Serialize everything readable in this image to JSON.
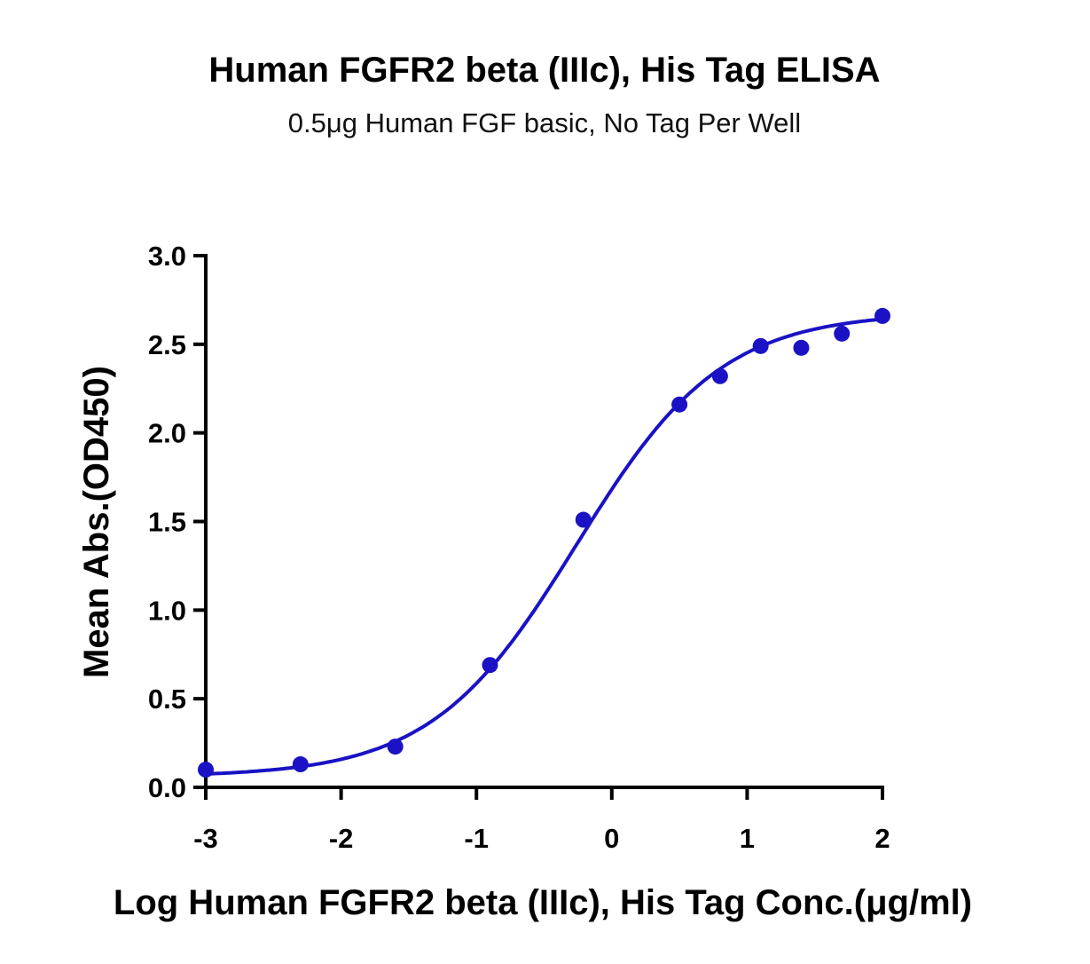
{
  "chart_data": {
    "type": "scatter",
    "title": "Human FGFR2 beta (IIIc), His Tag ELISA",
    "subtitle": "0.5μg Human FGF basic, No Tag Per Well",
    "xlabel": "Log Human FGFR2 beta (IIIc), His Tag Conc.(μg/ml)",
    "ylabel": "Mean Abs.(OD450)",
    "xlim": [
      -3,
      2
    ],
    "ylim": [
      0,
      3.0
    ],
    "xticks": [
      "-3",
      "-2",
      "-1",
      "0",
      "1",
      "2"
    ],
    "yticks": [
      "0.0",
      "0.5",
      "1.0",
      "1.5",
      "2.0",
      "2.5",
      "3.0"
    ],
    "grid": false,
    "color": "#1a12c4",
    "series": [
      {
        "name": "Mean Abs.",
        "x": [
          -3.0,
          -2.3,
          -1.6,
          -0.9,
          -0.21,
          0.5,
          0.8,
          1.1,
          1.4,
          1.7,
          2.0
        ],
        "y": [
          0.1,
          0.13,
          0.23,
          0.69,
          1.51,
          2.16,
          2.32,
          2.49,
          2.48,
          2.56,
          2.66
        ]
      }
    ],
    "fit": {
      "model": "4PL",
      "bottom": 0.06,
      "top": 2.68,
      "logEC50": -0.26,
      "hill": 0.81
    }
  }
}
